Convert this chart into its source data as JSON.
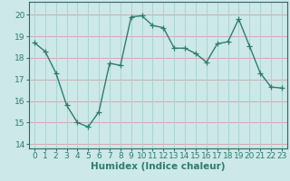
{
  "x": [
    0,
    1,
    2,
    3,
    4,
    5,
    6,
    7,
    8,
    9,
    10,
    11,
    12,
    13,
    14,
    15,
    16,
    17,
    18,
    19,
    20,
    21,
    22,
    23
  ],
  "y": [
    18.7,
    18.3,
    17.3,
    15.8,
    15.0,
    14.8,
    15.5,
    17.75,
    17.65,
    19.9,
    19.95,
    19.5,
    19.4,
    18.45,
    18.45,
    18.2,
    17.8,
    18.65,
    18.75,
    19.8,
    18.55,
    17.3,
    16.65,
    16.6
  ],
  "xlabel": "Humidex (Indice chaleur)",
  "ylim": [
    13.8,
    20.6
  ],
  "xlim": [
    -0.5,
    23.5
  ],
  "yticks": [
    14,
    15,
    16,
    17,
    18,
    19,
    20
  ],
  "xticks": [
    0,
    1,
    2,
    3,
    4,
    5,
    6,
    7,
    8,
    9,
    10,
    11,
    12,
    13,
    14,
    15,
    16,
    17,
    18,
    19,
    20,
    21,
    22,
    23
  ],
  "line_color": "#2e7d6e",
  "bg_color": "#cce8e8",
  "hgrid_color": "#d4aaaa",
  "vgrid_color": "#aad4d4",
  "marker": "+",
  "marker_size": 4,
  "line_width": 1.0,
  "xlabel_fontsize": 7.5,
  "tick_fontsize": 6.5
}
